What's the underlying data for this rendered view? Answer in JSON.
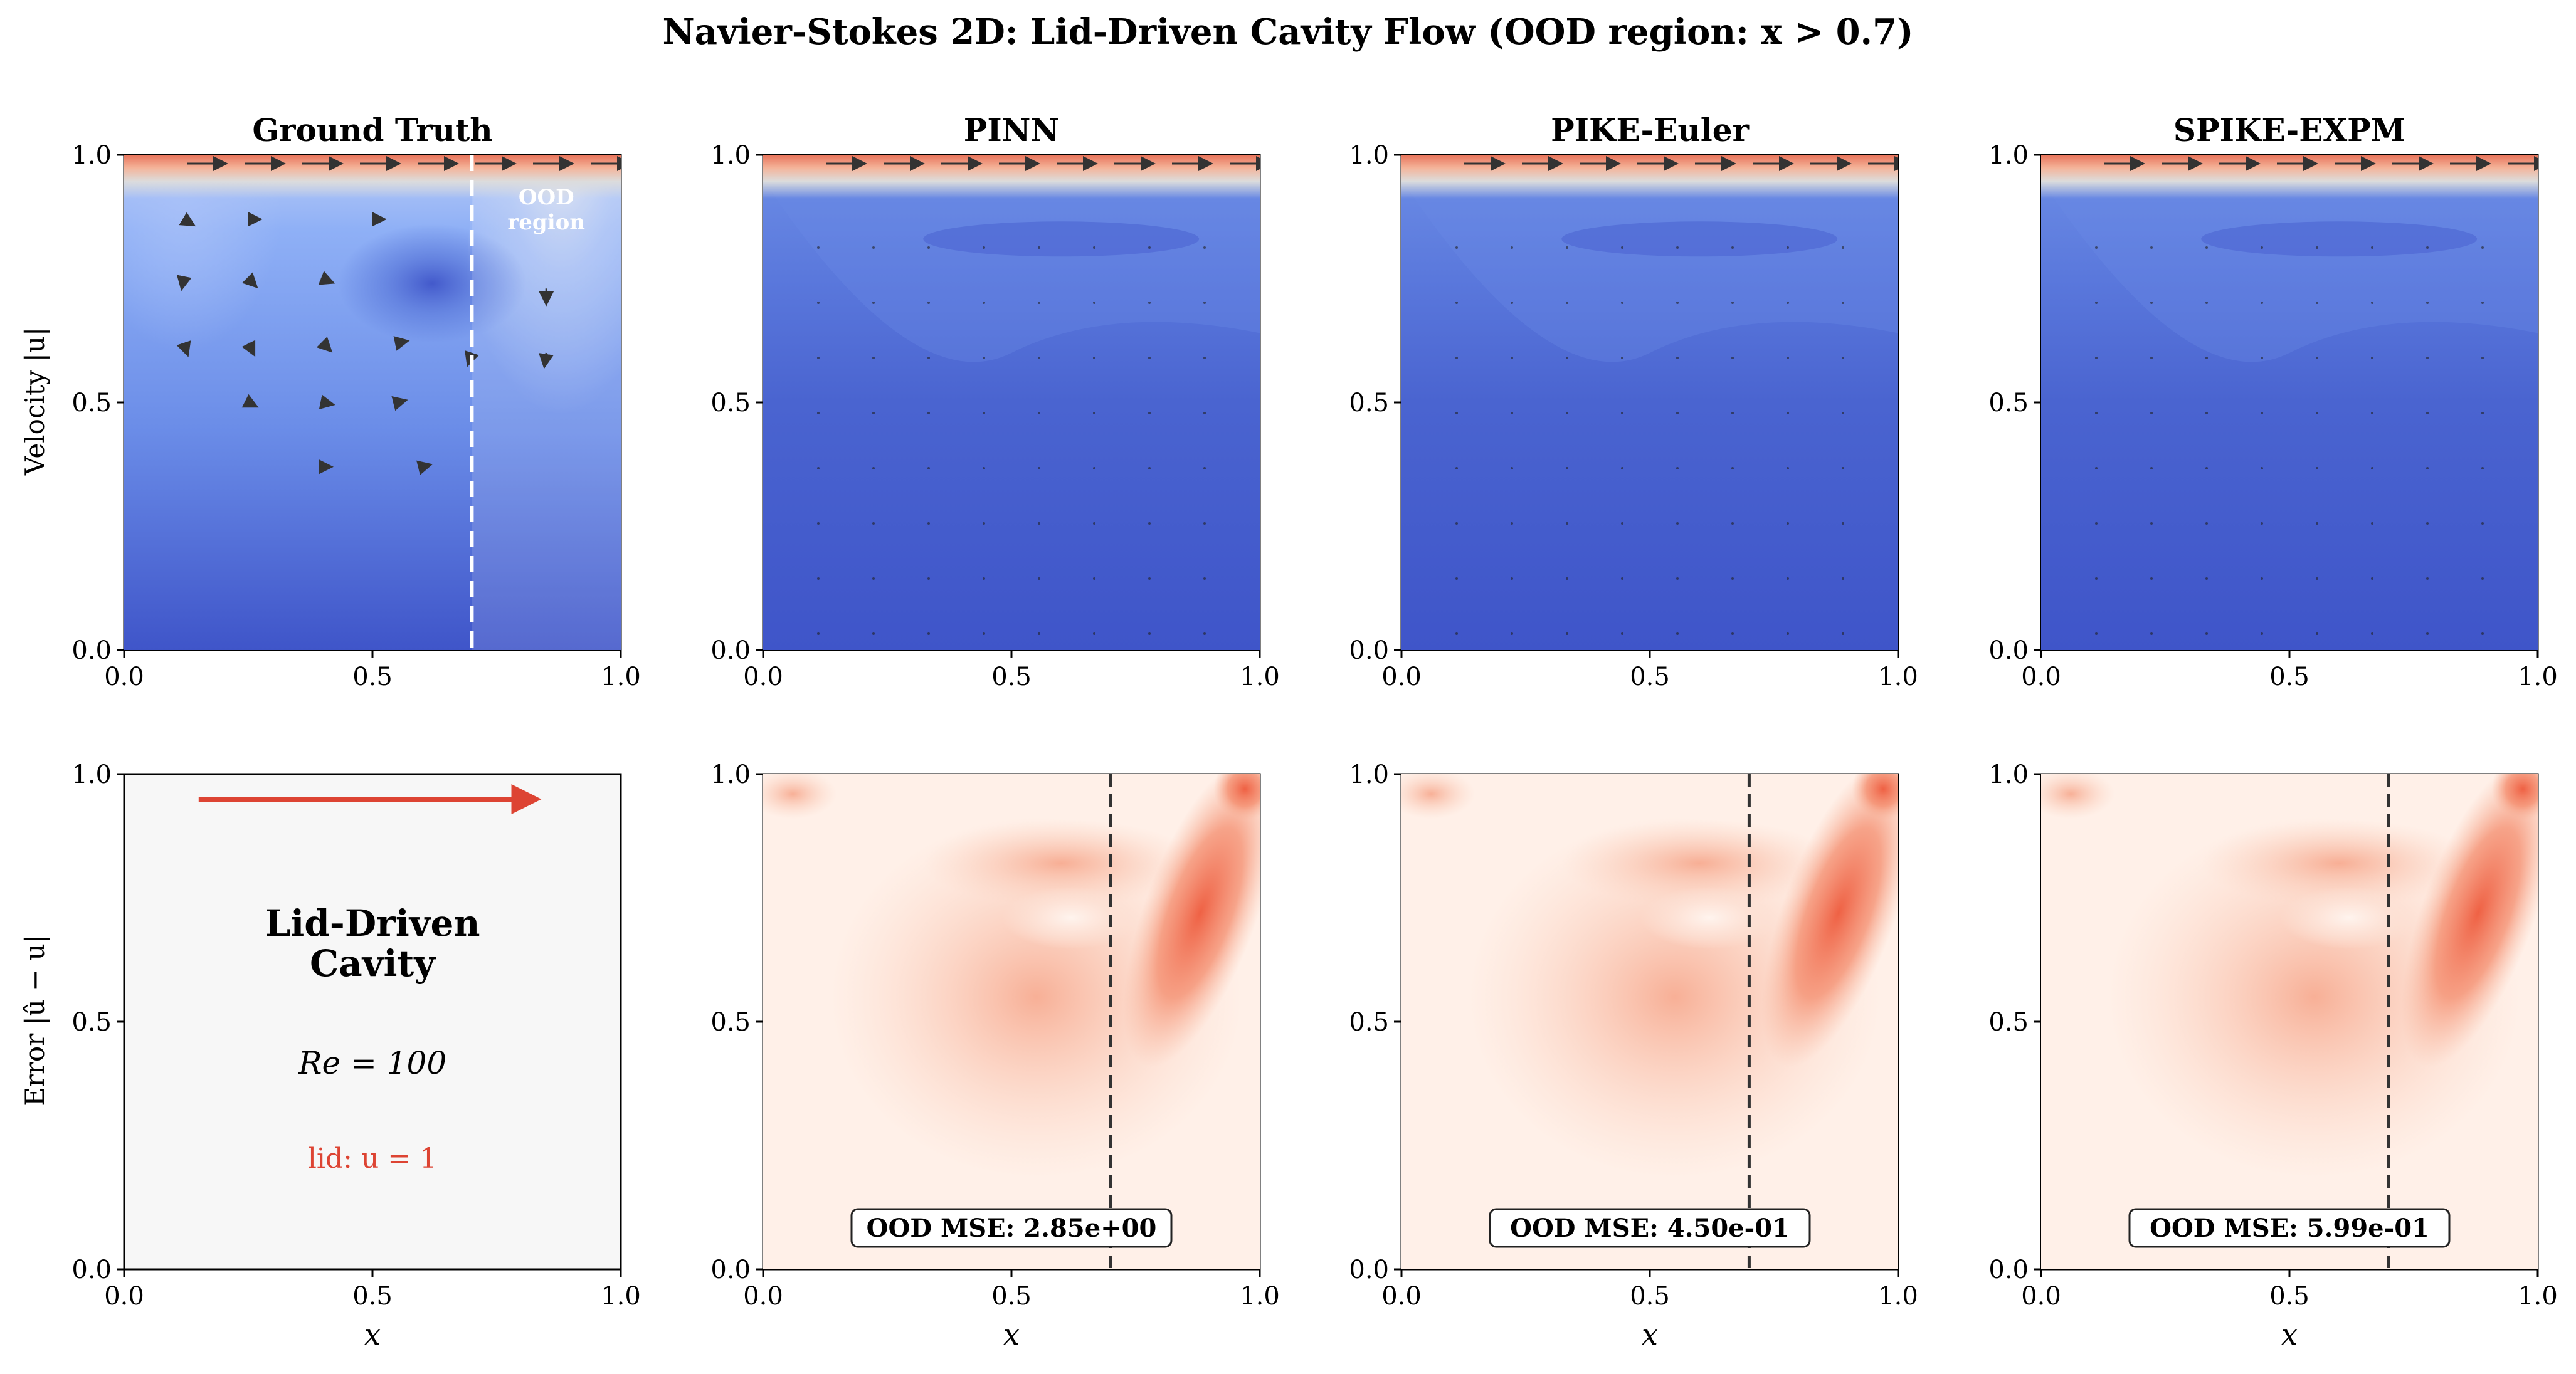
{
  "figure": {
    "title": "Navier-Stokes 2D: Lid-Driven Cavity Flow (OOD region: x > 0.7)"
  },
  "colors": {
    "cool_low": "#3f55c9",
    "cool_mid": "#6b8de8",
    "cool_light": "#9db8f8",
    "cool_high": "#dcdcdc",
    "warm": "#e8735a",
    "error_low": "#fff0e8",
    "error_mid": "#f8b49a",
    "error_high": "#ee5a3c",
    "ood_line": "#333333",
    "lid_arrow": "#dd4433"
  },
  "labels": {
    "row1_ylabel": "Velocity |u|",
    "row2_ylabel": "Error |û − u|",
    "xlabel": "x",
    "ood_region": [
      "OOD",
      "region"
    ]
  },
  "info_panel": {
    "title_lines": [
      "Lid-Driven",
      "Cavity"
    ],
    "reynolds": "Re = 100",
    "lid": "lid: u = 1"
  },
  "chart_data": [
    {
      "type": "heatmap",
      "name": "Ground Truth",
      "title": "Ground Truth",
      "row": "velocity",
      "xlim": [
        0,
        1
      ],
      "ylim": [
        0,
        1
      ],
      "xticks": [
        "0.0",
        "0.5",
        "1.0"
      ],
      "yticks": [
        "0.0",
        "0.5",
        "1.0"
      ],
      "ood_threshold": 0.7,
      "vortex_center": [
        0.62,
        0.74
      ],
      "lid_velocity": 1.0,
      "quiver": true
    },
    {
      "type": "heatmap",
      "name": "PINN",
      "title": "PINN",
      "row": "velocity",
      "xlim": [
        0,
        1
      ],
      "ylim": [
        0,
        1
      ],
      "xticks": [
        "0.0",
        "0.5",
        "1.0"
      ],
      "yticks": [
        "0.0",
        "0.5",
        "1.0"
      ],
      "lid_velocity": 1.0
    },
    {
      "type": "heatmap",
      "name": "PIKE-Euler",
      "title": "PIKE-Euler",
      "row": "velocity",
      "xlim": [
        0,
        1
      ],
      "ylim": [
        0,
        1
      ],
      "xticks": [
        "0.0",
        "0.5",
        "1.0"
      ],
      "yticks": [
        "0.0",
        "0.5",
        "1.0"
      ],
      "lid_velocity": 1.0
    },
    {
      "type": "heatmap",
      "name": "SPIKE-EXPM",
      "title": "SPIKE-EXPM",
      "row": "velocity",
      "xlim": [
        0,
        1
      ],
      "ylim": [
        0,
        1
      ],
      "xticks": [
        "0.0",
        "0.5",
        "1.0"
      ],
      "yticks": [
        "0.0",
        "0.5",
        "1.0"
      ],
      "lid_velocity": 1.0
    },
    {
      "type": "heatmap",
      "name": "PINN error",
      "row": "error",
      "xlim": [
        0,
        1
      ],
      "ylim": [
        0,
        1
      ],
      "xticks": [
        "0.0",
        "0.5",
        "1.0"
      ],
      "yticks": [
        "0.0",
        "0.5",
        "1.0"
      ],
      "ood_threshold": 0.7,
      "ood_mse": "OOD MSE: 2.85e+00"
    },
    {
      "type": "heatmap",
      "name": "PIKE-Euler error",
      "row": "error",
      "xlim": [
        0,
        1
      ],
      "ylim": [
        0,
        1
      ],
      "xticks": [
        "0.0",
        "0.5",
        "1.0"
      ],
      "yticks": [
        "0.0",
        "0.5",
        "1.0"
      ],
      "ood_threshold": 0.7,
      "ood_mse": "OOD MSE: 4.50e-01"
    },
    {
      "type": "heatmap",
      "name": "SPIKE-EXPM error",
      "row": "error",
      "xlim": [
        0,
        1
      ],
      "ylim": [
        0,
        1
      ],
      "xticks": [
        "0.0",
        "0.5",
        "1.0"
      ],
      "yticks": [
        "0.0",
        "0.5",
        "1.0"
      ],
      "ood_threshold": 0.7,
      "ood_mse": "OOD MSE: 5.99e-01"
    }
  ]
}
